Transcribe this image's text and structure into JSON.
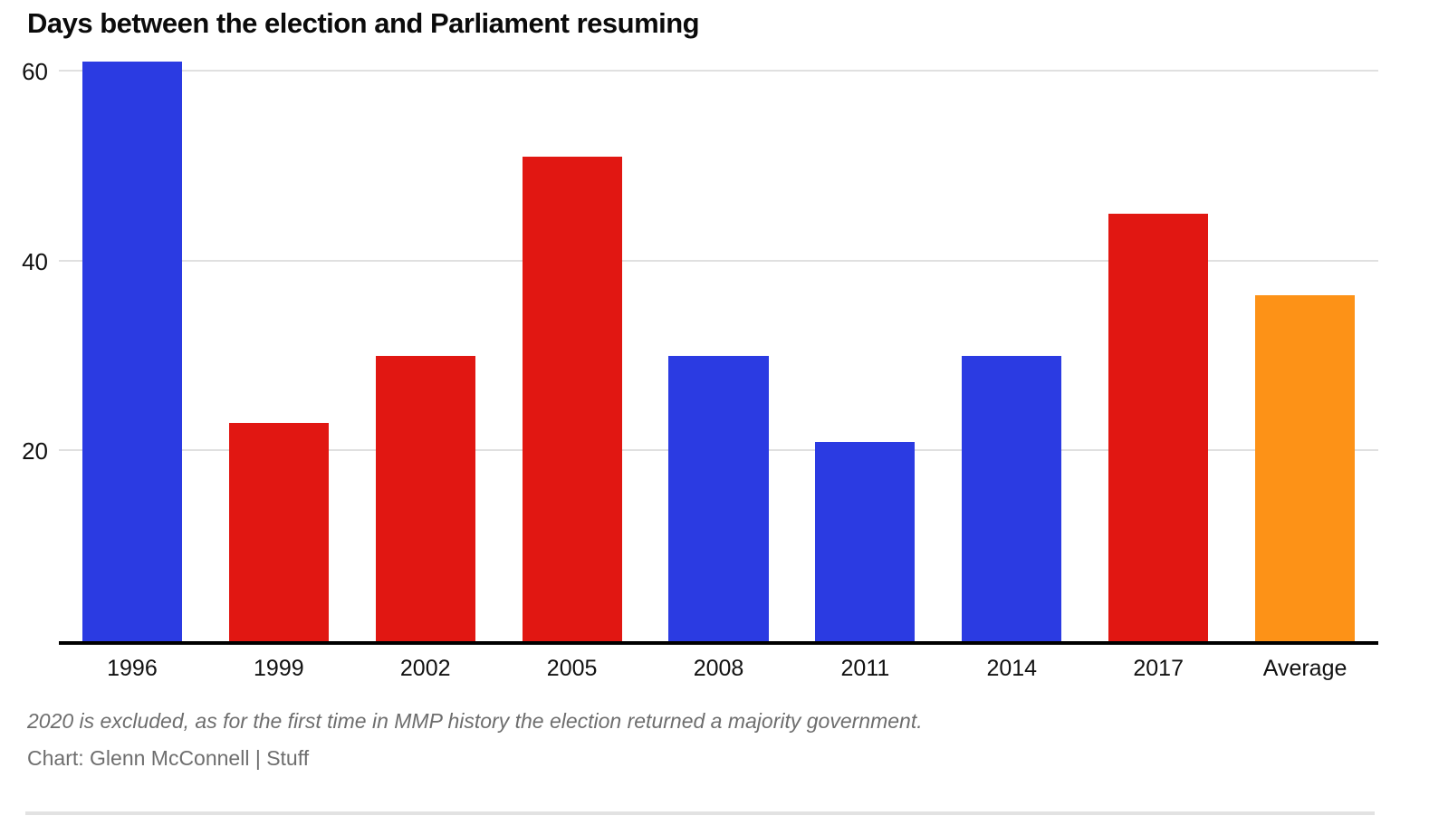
{
  "header": {
    "title": "Days between the election and Parliament resuming"
  },
  "chart_data": {
    "type": "bar",
    "categories": [
      "1996",
      "1999",
      "2002",
      "2005",
      "2008",
      "2011",
      "2014",
      "2017",
      "Average"
    ],
    "values": [
      61,
      23,
      30,
      51,
      30,
      21,
      30,
      45,
      36.4
    ],
    "bar_colors": [
      "#2b3be2",
      "#e11712",
      "#e11712",
      "#e11712",
      "#2b3be2",
      "#2b3be2",
      "#2b3be2",
      "#e11712",
      "#fd9217"
    ],
    "title": "Days between the election and Parliament resuming",
    "xlabel": "",
    "ylabel": "",
    "ylim": [
      0,
      62
    ],
    "yticks": [
      20,
      40,
      60
    ],
    "grid": true,
    "legend": false,
    "colors": {
      "election_blue": "#2b3be2",
      "election_red": "#e11712",
      "average_orange": "#fd9217",
      "gridline": "#e0e0e0",
      "axis": "#000000",
      "label_text": "#111111",
      "muted_text": "#6e6e6e"
    }
  },
  "notes": {
    "footnote": "2020 is excluded, as for the first time in MMP history the election returned a majority government.",
    "credit": "Chart: Glenn McConnell | Stuff"
  }
}
